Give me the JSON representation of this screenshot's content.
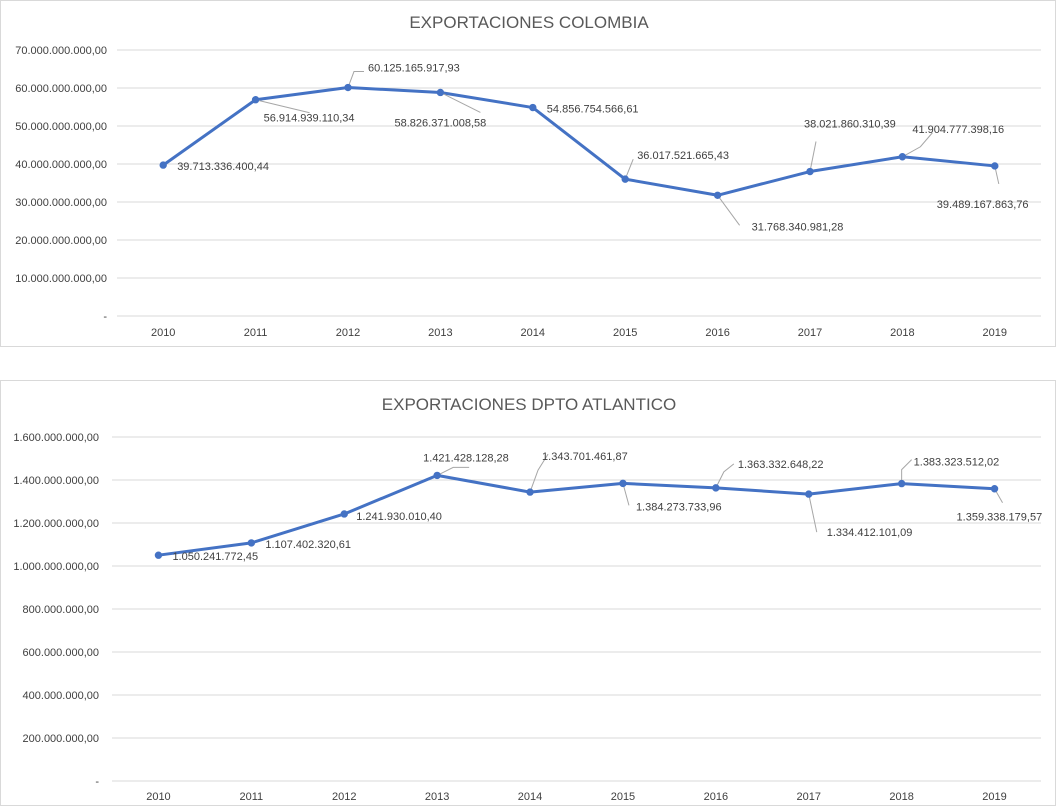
{
  "chart_data": [
    {
      "type": "line",
      "title": "EXPORTACIONES COLOMBIA",
      "xlabel": "",
      "ylabel": "",
      "ylim": [
        0,
        70000000000
      ],
      "y_ticks": [
        "-",
        "10.000.000.000,00",
        "20.000.000.000,00",
        "30.000.000.000,00",
        "40.000.000.000,00",
        "50.000.000.000,00",
        "60.000.000.000,00",
        "70.000.000.000,00"
      ],
      "categories": [
        "2010",
        "2011",
        "2012",
        "2013",
        "2014",
        "2015",
        "2016",
        "2017",
        "2018",
        "2019"
      ],
      "series": [
        {
          "color": "#4472c4",
          "values": [
            39713336400.44,
            56914939110.34,
            60125165917.93,
            58826371008.58,
            54856754566.61,
            36017521665.43,
            31768340981.28,
            38021860310.39,
            41904777398.16,
            39489167863.76
          ],
          "labels": [
            "39.713.336.400,44",
            "56.914.939.110,34",
            "60.125.165.917,93",
            "58.826.371.008,58",
            "54.856.754.566,61",
            "36.017.521.665,43",
            "31.768.340.981,28",
            "38.021.860.310,39",
            "41.904.777.398,16",
            "39.489.167.863,76"
          ]
        }
      ],
      "grid": true,
      "legend": "none"
    },
    {
      "type": "line",
      "title": "EXPORTACIONES DPTO ATLANTICO",
      "xlabel": "",
      "ylabel": "",
      "ylim": [
        0,
        1600000000
      ],
      "y_ticks": [
        "-",
        "200.000.000,00",
        "400.000.000,00",
        "600.000.000,00",
        "800.000.000,00",
        "1.000.000.000,00",
        "1.200.000.000,00",
        "1.400.000.000,00",
        "1.600.000.000,00"
      ],
      "categories": [
        "2010",
        "2011",
        "2012",
        "2013",
        "2014",
        "2015",
        "2016",
        "2017",
        "2018",
        "2019"
      ],
      "series": [
        {
          "color": "#4472c4",
          "values": [
            1050241772.45,
            1107402320.61,
            1241930010.4,
            1421428128.28,
            1343701461.87,
            1384273733.96,
            1363332648.22,
            1334412101.09,
            1383323512.02,
            1359338179.57
          ],
          "labels": [
            "1.050.241.772,45",
            "1.107.402.320,61",
            "1.241.930.010,40",
            "1.421.428.128,28",
            "1.343.701.461,87",
            "1.384.273.733,96",
            "1.363.332.648,22",
            "1.334.412.101,09",
            "1.383.323.512,02",
            "1.359.338.179,57"
          ]
        }
      ],
      "grid": true,
      "legend": "none"
    }
  ]
}
